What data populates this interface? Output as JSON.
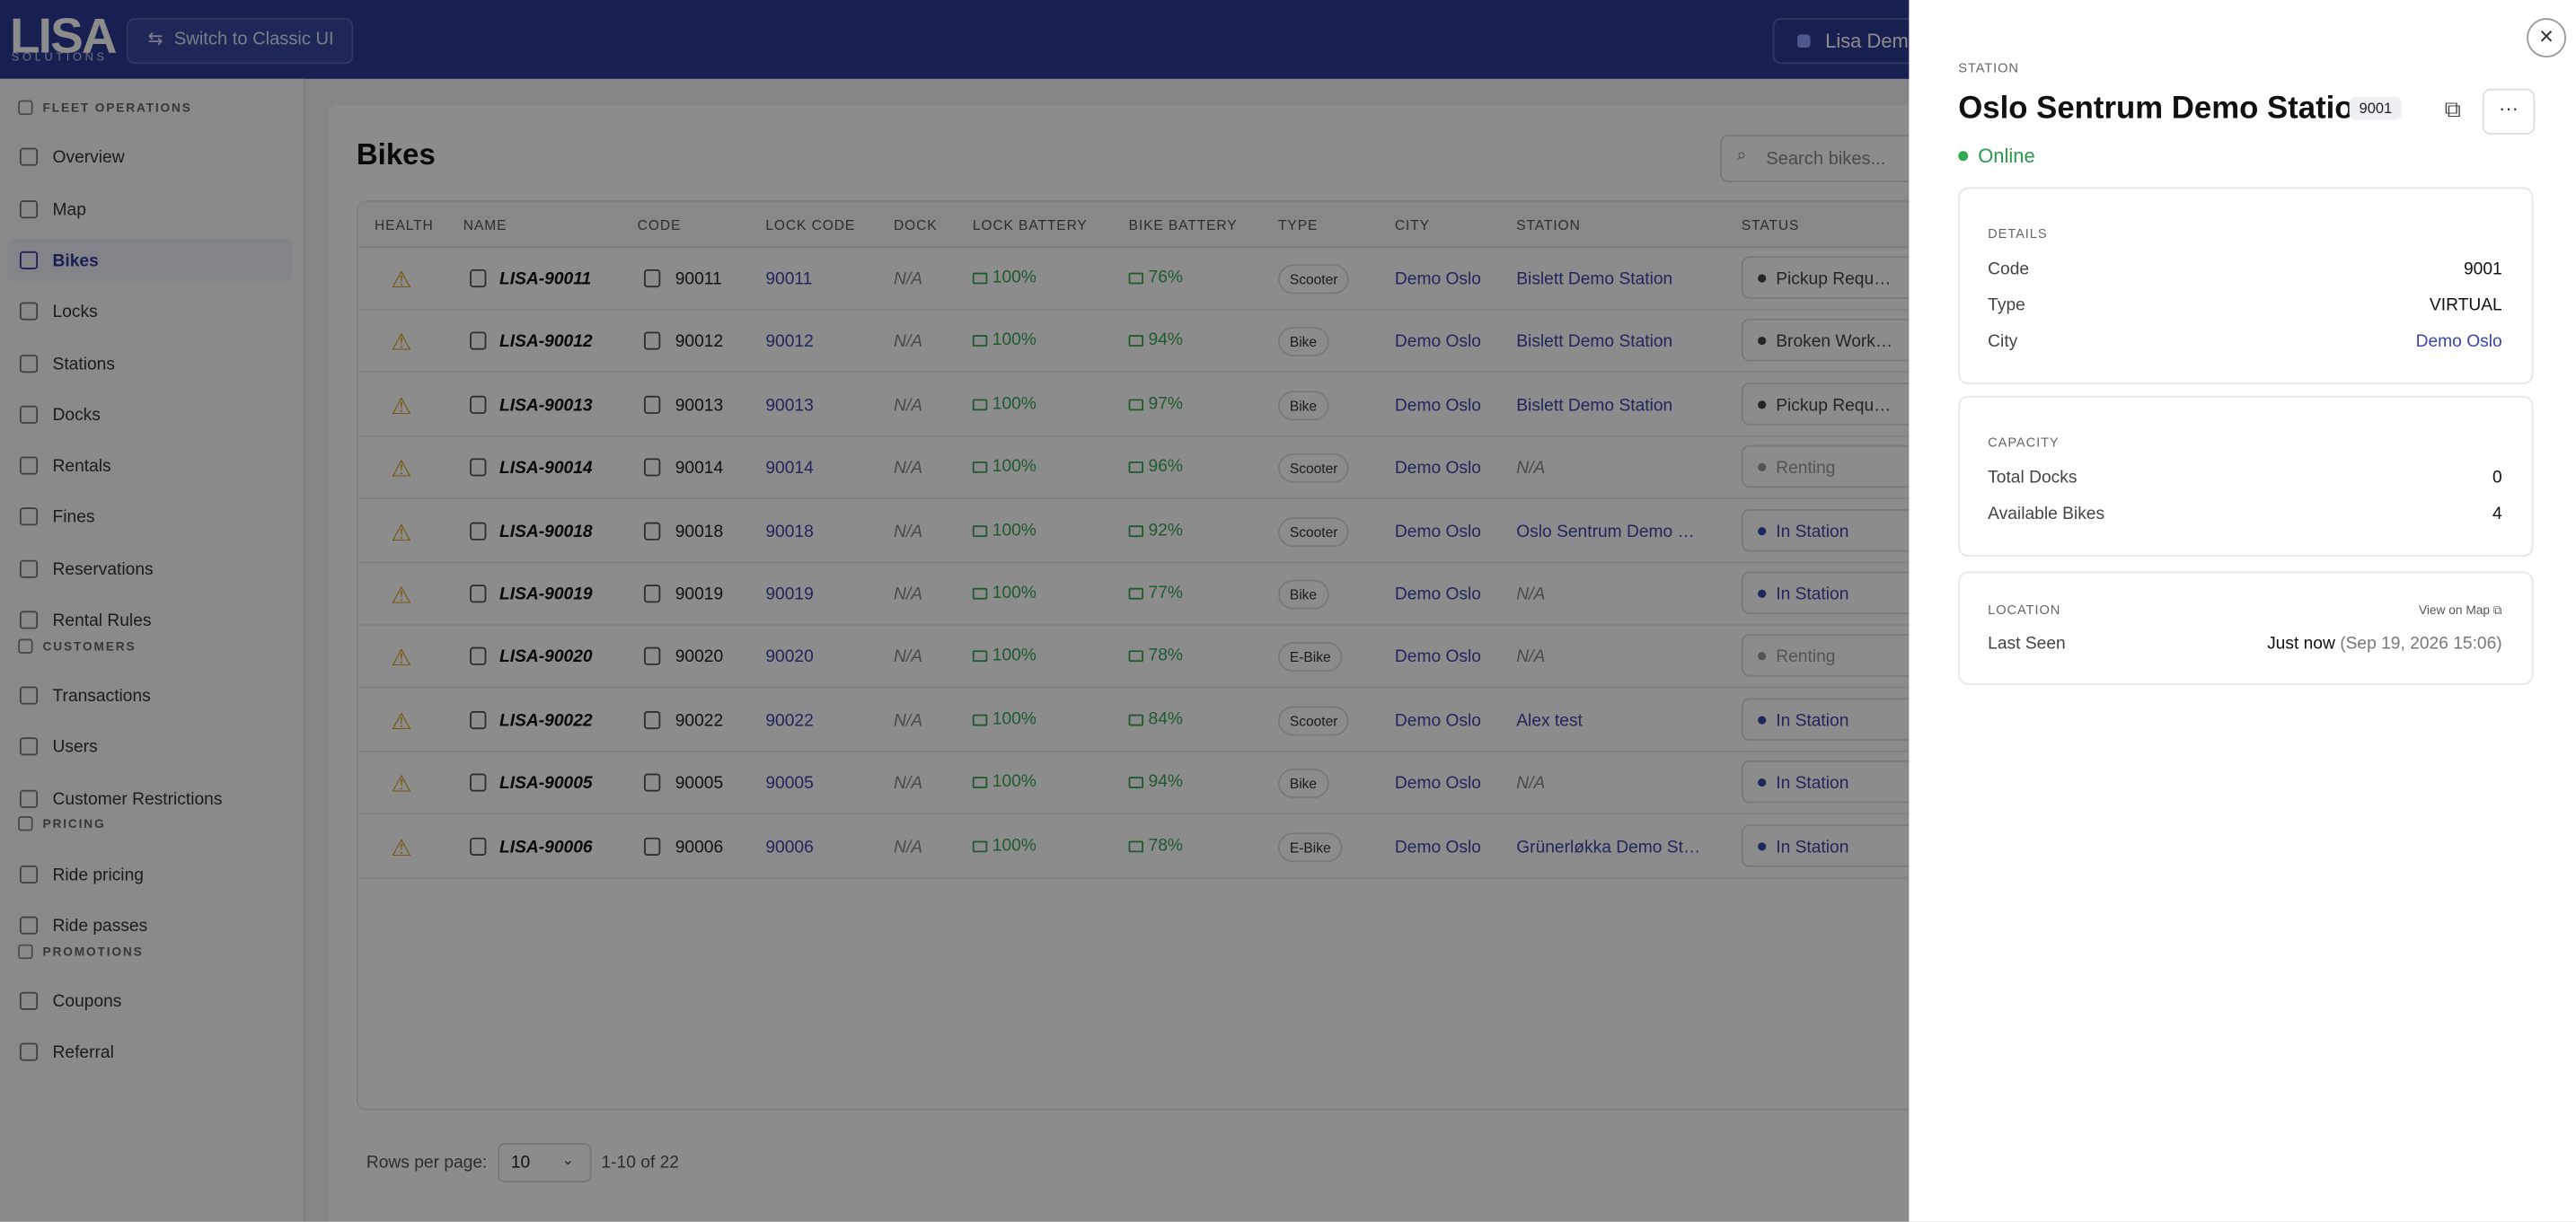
{
  "header": {
    "logo": "LISA",
    "logo_sub": "SOLUTIONS",
    "switch_button": "Switch to Classic UI",
    "account": "Lisa Dem"
  },
  "sidebar": {
    "sections": [
      {
        "title": "FLEET OPERATIONS",
        "items": [
          "Overview",
          "Map",
          "Bikes",
          "Locks",
          "Stations",
          "Docks",
          "Rentals",
          "Fines",
          "Reservations",
          "Rental Rules"
        ]
      },
      {
        "title": "CUSTOMERS",
        "items": [
          "Transactions",
          "Users",
          "Customer Restrictions"
        ]
      },
      {
        "title": "PRICING",
        "items": [
          "Ride pricing",
          "Ride passes"
        ]
      },
      {
        "title": "PROMOTIONS",
        "items": [
          "Coupons",
          "Referral"
        ]
      }
    ]
  },
  "page": {
    "title": "Bikes",
    "search_placeholder": "Search bikes..."
  },
  "table": {
    "columns": [
      "HEALTH",
      "NAME",
      "CODE",
      "LOCK CODE",
      "DOCK",
      "LOCK BATTERY",
      "BIKE BATTERY",
      "TYPE",
      "CITY",
      "STATION",
      "STATUS"
    ],
    "rows": [
      [
        "LISA-90011",
        "90011",
        "90011",
        "N/A",
        "100%",
        "76%",
        "Scooter",
        "Demo Oslo",
        "Bislett Demo Station",
        "Pickup Requ…"
      ],
      [
        "LISA-90012",
        "90012",
        "90012",
        "N/A",
        "100%",
        "94%",
        "Bike",
        "Demo Oslo",
        "Bislett Demo Station",
        "Broken Work…"
      ],
      [
        "LISA-90013",
        "90013",
        "90013",
        "N/A",
        "100%",
        "97%",
        "Bike",
        "Demo Oslo",
        "Bislett Demo Station",
        "Pickup Requ…"
      ],
      [
        "LISA-90014",
        "90014",
        "90014",
        "N/A",
        "100%",
        "96%",
        "Scooter",
        "Demo Oslo",
        "N/A",
        "Renting"
      ],
      [
        "LISA-90018",
        "90018",
        "90018",
        "N/A",
        "100%",
        "92%",
        "Scooter",
        "Demo Oslo",
        "Oslo Sentrum Demo …",
        "In Station"
      ],
      [
        "LISA-90019",
        "90019",
        "90019",
        "N/A",
        "100%",
        "77%",
        "Bike",
        "Demo Oslo",
        "N/A",
        "In Station"
      ],
      [
        "LISA-90020",
        "90020",
        "90020",
        "N/A",
        "100%",
        "78%",
        "E-Bike",
        "Demo Oslo",
        "N/A",
        "Renting"
      ],
      [
        "LISA-90022",
        "90022",
        "90022",
        "N/A",
        "100%",
        "84%",
        "Scooter",
        "Demo Oslo",
        "Alex test",
        "In Station"
      ],
      [
        "LISA-90005",
        "90005",
        "90005",
        "N/A",
        "100%",
        "94%",
        "Bike",
        "Demo Oslo",
        "N/A",
        "In Station"
      ],
      [
        "LISA-90006",
        "90006",
        "90006",
        "N/A",
        "100%",
        "78%",
        "E-Bike",
        "Demo Oslo",
        "Grünerløkka Demo St…",
        "In Station"
      ]
    ],
    "status_colors": [
      "#444",
      "#444",
      "#444",
      "#999",
      "#3947a8",
      "#3947a8",
      "#999",
      "#3947a8",
      "#3947a8",
      "#3947a8"
    ]
  },
  "pagination": {
    "label": "Rows per page:",
    "rows_per_page": "10",
    "range": "1-10 of 22"
  },
  "drawer": {
    "kicker": "STATION",
    "title": "Oslo Sentrum Demo Station",
    "badge": "9001",
    "status": "Online",
    "details": {
      "heading": "DETAILS",
      "rows": [
        [
          "Code",
          "9001"
        ],
        [
          "Type",
          "VIRTUAL"
        ],
        [
          "City",
          "Demo Oslo"
        ]
      ]
    },
    "capacity": {
      "heading": "CAPACITY",
      "rows": [
        [
          "Total Docks",
          "0"
        ],
        [
          "Available Bikes",
          "4"
        ]
      ]
    },
    "location": {
      "heading": "LOCATION",
      "link": "View on Map",
      "label": "Last Seen",
      "value": "Just now",
      "detail": "(Sep 19, 2026 15:06)"
    }
  }
}
